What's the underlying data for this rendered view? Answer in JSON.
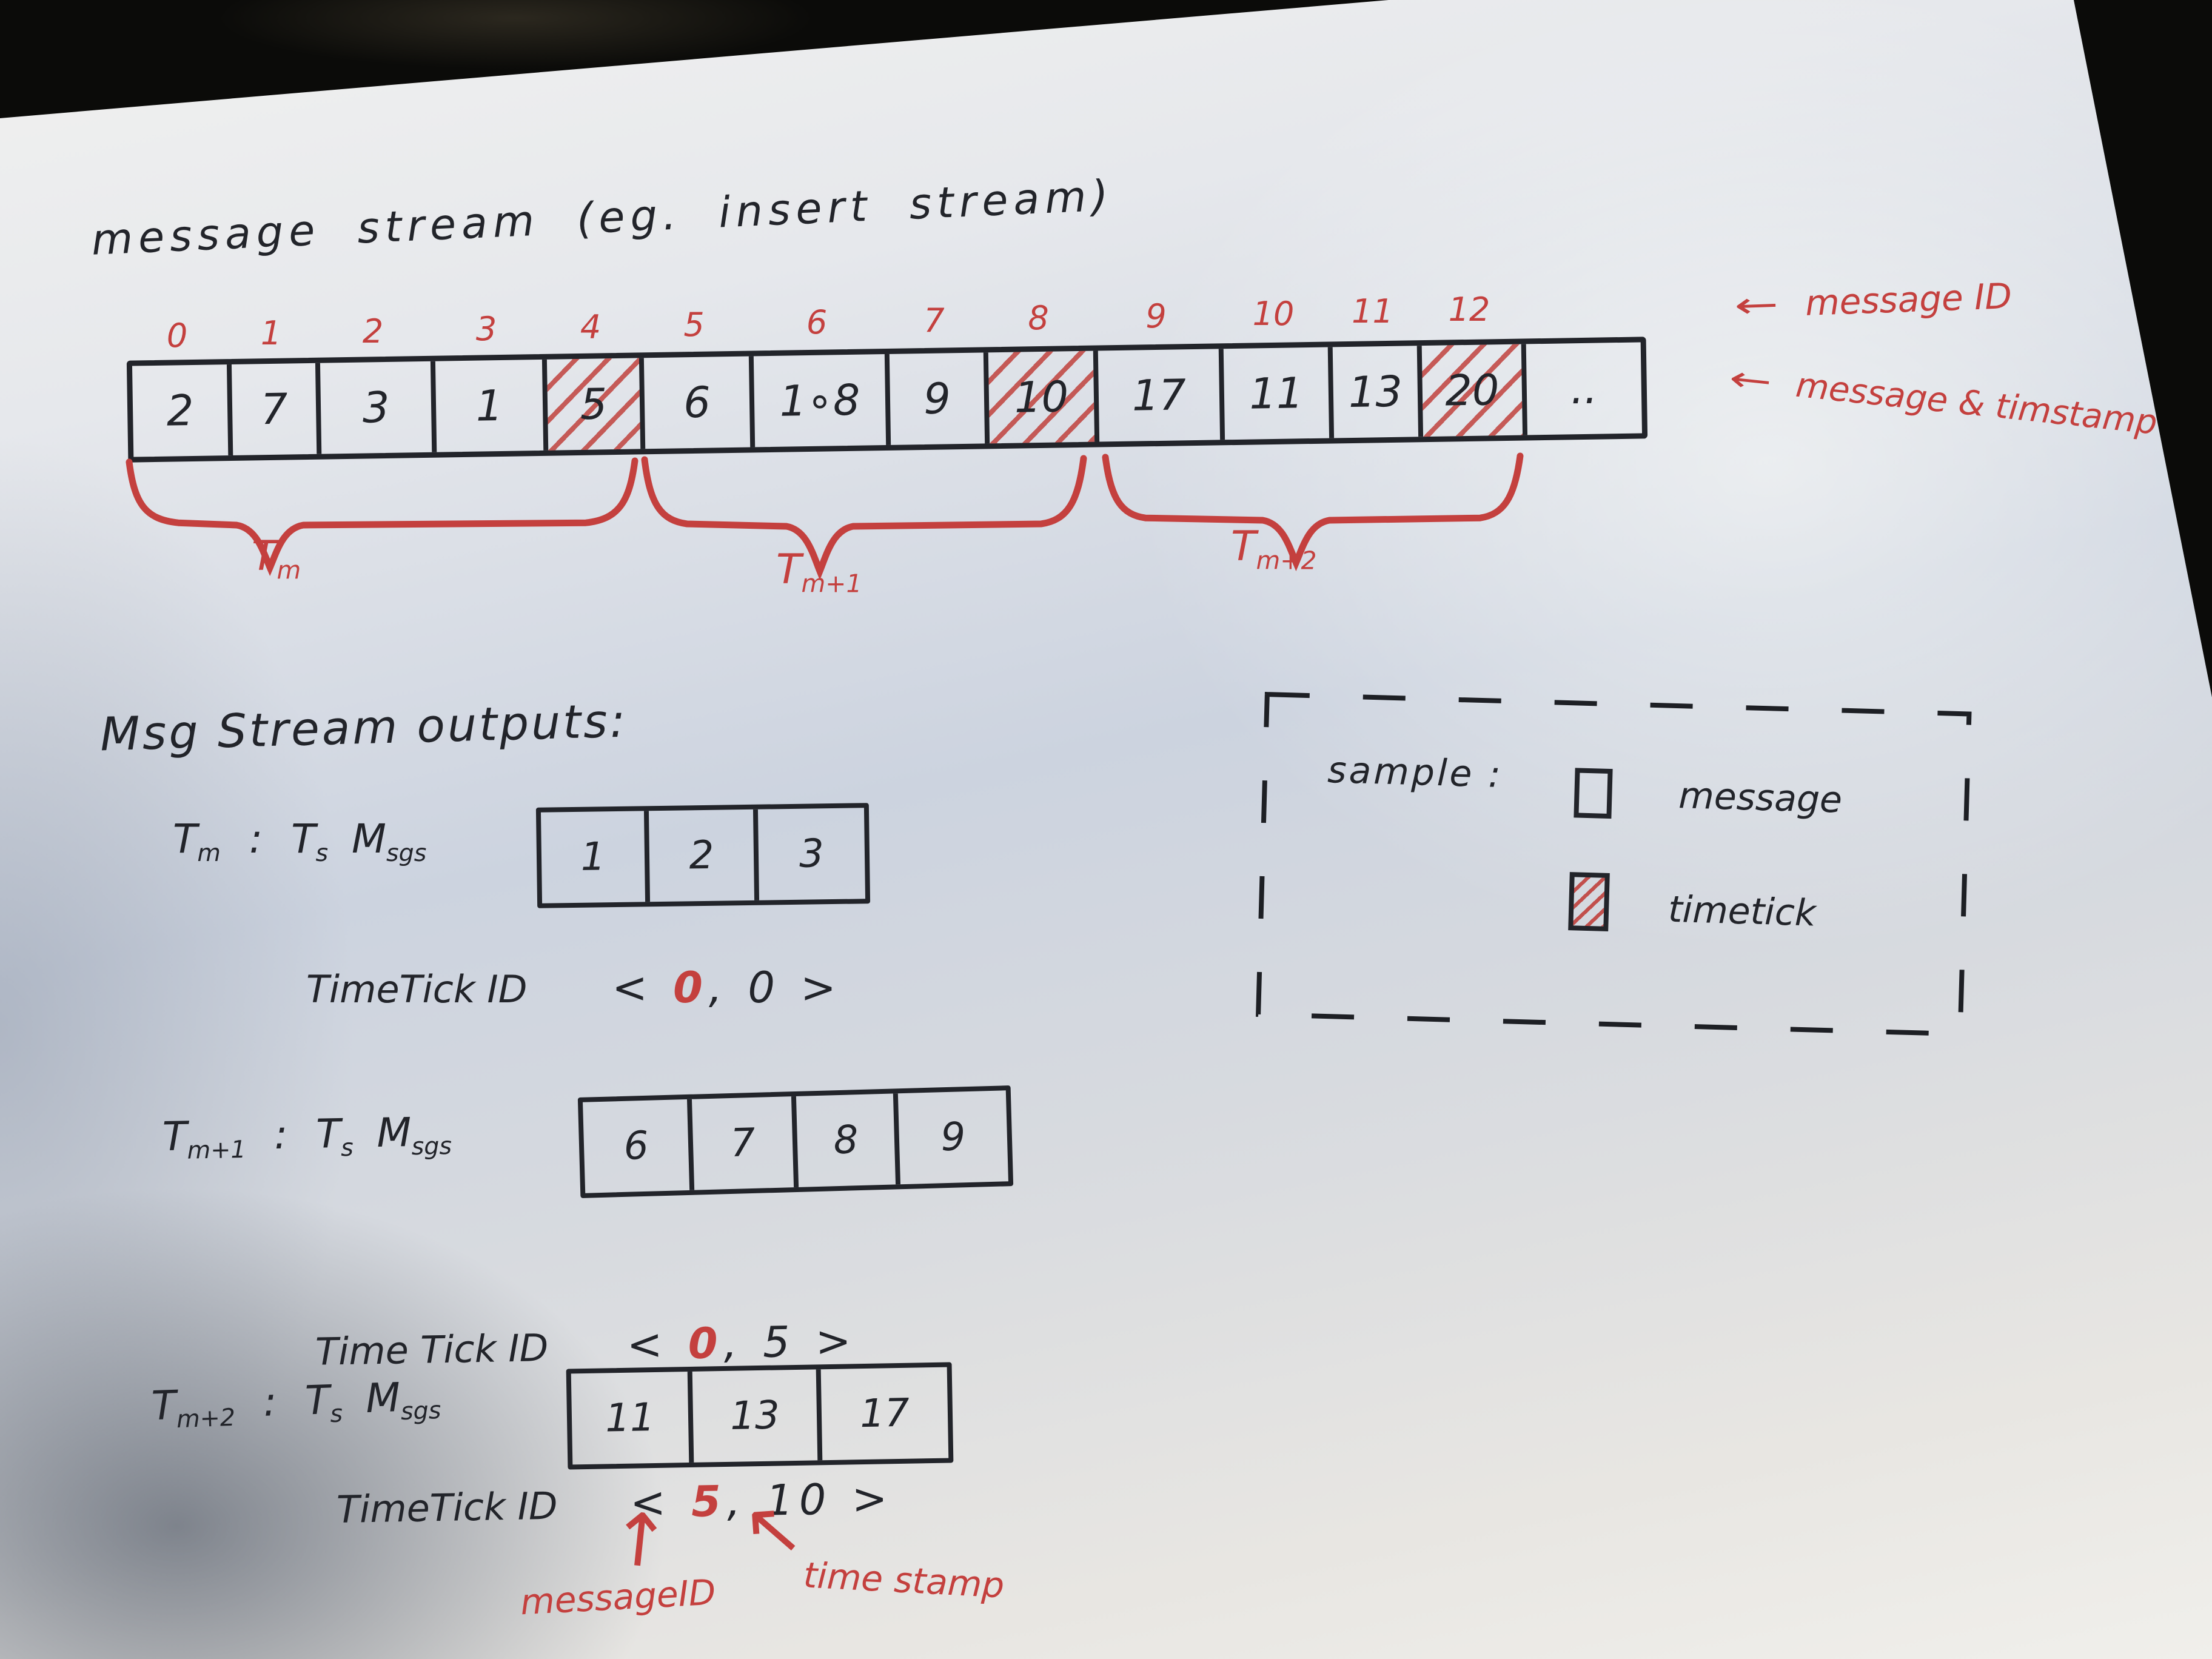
{
  "title": "message stream (eg. insert stream)",
  "colors": {
    "ink": "#22242a",
    "red": "#c4403e",
    "paper": "#d7dadf"
  },
  "icons": {
    "left_arrow": "←",
    "up_arrow": "↑",
    "up_left_arrow": "↖"
  },
  "punct": {
    "open": "<",
    "comma": ",",
    "close": ">",
    "colon": ":"
  },
  "stream": {
    "indices": [
      "0",
      "1",
      "2",
      "3",
      "4",
      "5",
      "6",
      "7",
      "8",
      "9",
      "10",
      "11",
      "12"
    ],
    "cells": [
      {
        "value": "2",
        "type": "message"
      },
      {
        "value": "7",
        "type": "message"
      },
      {
        "value": "3",
        "type": "message"
      },
      {
        "value": "1",
        "type": "message"
      },
      {
        "value": "5",
        "type": "timetick"
      },
      {
        "value": "6",
        "type": "message"
      },
      {
        "value": "1∘8",
        "type": "message"
      },
      {
        "value": "9",
        "type": "message"
      },
      {
        "value": "10",
        "type": "timetick"
      },
      {
        "value": "17",
        "type": "message"
      },
      {
        "value": "11",
        "type": "message"
      },
      {
        "value": "13",
        "type": "message"
      },
      {
        "value": "20",
        "type": "timetick"
      },
      {
        "value": "..",
        "type": "message"
      }
    ],
    "arrow_labels": {
      "top": "message ID",
      "bottom": "message & timstamp"
    },
    "braces": [
      {
        "base": "T",
        "sub": "m"
      },
      {
        "base": "T",
        "sub": "m+1"
      },
      {
        "base": "T",
        "sub": "m+2"
      }
    ]
  },
  "outputs": {
    "heading": "Msg Stream outputs:",
    "ts_label": {
      "T": "T",
      "T_sub": "s",
      "M": "M",
      "M_sub": "sgs"
    },
    "rows": [
      {
        "t_base": "T",
        "t_sub": "m",
        "msgs": [
          "1",
          "2",
          "3"
        ],
        "tick_label": "TimeTick ID",
        "tick_first": "0",
        "tick_second": "0"
      },
      {
        "t_base": "T",
        "t_sub": "m+1",
        "msgs": [
          "6",
          "7",
          "8",
          "9"
        ],
        "tick_label": "Time Tick ID",
        "tick_first": "0",
        "tick_second": "5"
      },
      {
        "t_base": "T",
        "t_sub": "m+2",
        "msgs": [
          "11",
          "13",
          "17"
        ],
        "tick_label": "TimeTick ID",
        "tick_first": "5",
        "tick_second": "10"
      }
    ],
    "bottom_captions": {
      "first": "messageID",
      "second": "time stamp"
    }
  },
  "legend": {
    "title": "sample :",
    "items": [
      {
        "symbol": "message-square",
        "label": "message"
      },
      {
        "symbol": "timetick-square",
        "label": "timetick"
      }
    ]
  }
}
